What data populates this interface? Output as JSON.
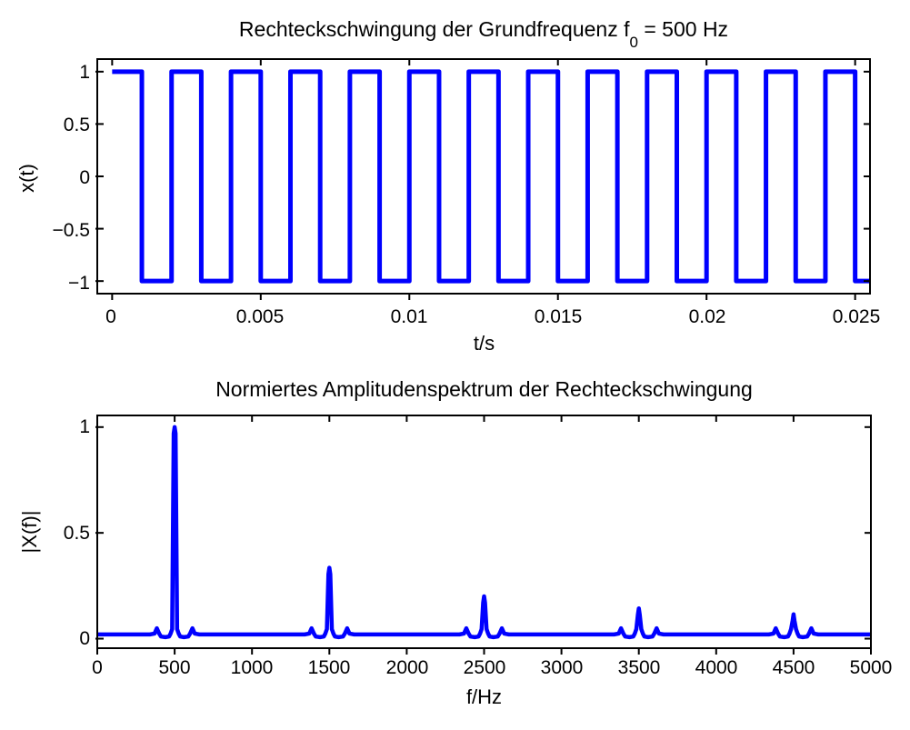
{
  "top_plot": {
    "title_prefix": "Rechteckschwingung der Grundfrequenz f",
    "title_sub": "0",
    "title_suffix": " = 500 Hz",
    "xlabel": "t/s",
    "ylabel": "x(t)",
    "xtick_labels": [
      "0",
      "0.005",
      "0.01",
      "0.015",
      "0.02",
      "0.025"
    ],
    "ytick_labels": [
      "1",
      "0.5",
      "0",
      "−0.5",
      "−1"
    ]
  },
  "bottom_plot": {
    "title": "Normiertes Amplitudenspektrum der Rechteckschwingung",
    "xlabel": "f/Hz",
    "ylabel": "|X(f)|",
    "xtick_labels": [
      "0",
      "500",
      "1000",
      "1500",
      "2000",
      "2500",
      "3000",
      "3500",
      "4000",
      "4500",
      "5000"
    ],
    "ytick_labels": [
      "1",
      "0.5",
      "0"
    ]
  },
  "chart_data": [
    {
      "type": "line",
      "name": "square-wave",
      "title": "Rechteckschwingung der Grundfrequenz f0 = 500 Hz",
      "xlabel": "t/s",
      "ylabel": "x(t)",
      "f0_hz": 500,
      "amplitude": 1,
      "initial_level": 1,
      "t_start": 0,
      "xlim": [
        -0.0005,
        0.0255
      ],
      "ylim": [
        -1.12,
        1.12
      ],
      "xticks": [
        0,
        0.005,
        0.01,
        0.015,
        0.02,
        0.025
      ],
      "yticks": [
        -1,
        -0.5,
        0,
        0.5,
        1
      ],
      "grid": false,
      "line_color": "#0000ff",
      "line_width": 5
    },
    {
      "type": "line",
      "name": "amplitude-spectrum",
      "title": "Normiertes Amplitudenspektrum der Rechteckschwingung",
      "xlabel": "f/Hz",
      "ylabel": "|X(f)|",
      "xlim": [
        0,
        5000
      ],
      "ylim": [
        -0.045,
        1.055
      ],
      "xticks": [
        0,
        500,
        1000,
        1500,
        2000,
        2500,
        3000,
        3500,
        4000,
        4500,
        5000
      ],
      "yticks": [
        0,
        0.5,
        1
      ],
      "grid": false,
      "baseline": 0.02,
      "sidelobe_amp": 0.049,
      "harmonics": [
        {
          "f": 500,
          "amp": 1.0
        },
        {
          "f": 1500,
          "amp": 0.335
        },
        {
          "f": 2500,
          "amp": 0.2
        },
        {
          "f": 3500,
          "amp": 0.143
        },
        {
          "f": 4500,
          "amp": 0.115
        }
      ],
      "line_color": "#0000ff",
      "line_width": 4.5
    }
  ]
}
